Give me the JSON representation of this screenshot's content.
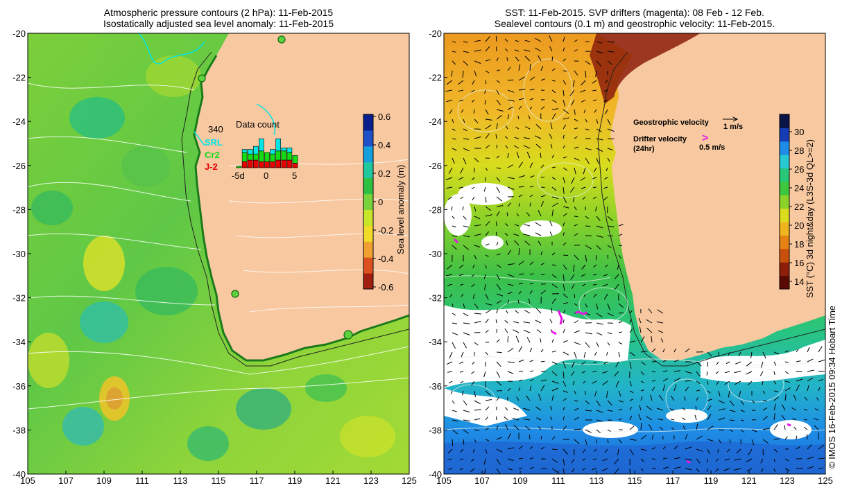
{
  "left_panel": {
    "title_line1": "Atmospheric pressure contours (2 hPa): 11-Feb-2015",
    "title_line2": "Isostatically adjusted sea level anomaly: 11-Feb-2015",
    "colorbar": {
      "label": "Sea level anomaly (m)",
      "ticks": [
        "0.6",
        "0.4",
        "0.2",
        "0",
        "-0.2",
        "-0.4",
        "-0.6"
      ],
      "colors": [
        "#0a1e8c",
        "#1e50c8",
        "#14a0dc",
        "#20c8a0",
        "#2ec040",
        "#78d23c",
        "#c8e628",
        "#f0dc28",
        "#f0a030",
        "#dc5020",
        "#a01e10"
      ]
    },
    "data_count": {
      "title": "Data count",
      "max_label": "340",
      "series": [
        "SRL",
        "Cr2",
        "J-2"
      ],
      "series_colors": [
        "#00e6e6",
        "#14dc14",
        "#e60000"
      ],
      "x_ticks": [
        "-5d",
        "0",
        "5"
      ],
      "bars": [
        {
          "day": -6,
          "SRL": 0,
          "Cr2": 1,
          "J-2": 0
        },
        {
          "day": -5,
          "SRL": 2,
          "Cr2": 6,
          "J-2": 4
        },
        {
          "day": -4,
          "SRL": 3,
          "Cr2": 4,
          "J-2": 5
        },
        {
          "day": -3,
          "SRL": 5,
          "Cr2": 4,
          "J-2": 5
        },
        {
          "day": -2,
          "SRL": 8,
          "Cr2": 7,
          "J-2": 4
        },
        {
          "day": -1,
          "SRL": 0,
          "Cr2": 6,
          "J-2": 4
        },
        {
          "day": 0,
          "SRL": 3,
          "Cr2": 5,
          "J-2": 4
        },
        {
          "day": 1,
          "SRL": 8,
          "Cr2": 6,
          "J-2": 5
        },
        {
          "day": 2,
          "SRL": 2,
          "Cr2": 6,
          "J-2": 5
        },
        {
          "day": 3,
          "SRL": 3,
          "Cr2": 5,
          "J-2": 5
        },
        {
          "day": 4,
          "SRL": 0,
          "Cr2": 5,
          "J-2": 3
        }
      ]
    }
  },
  "right_panel": {
    "title_line1": "SST: 11-Feb-2015. SVP drifters (magenta): 08 Feb - 12 Feb.",
    "title_line2": "Sealevel contours (0.1 m) and geostrophic velocity: 11-Feb-2015.",
    "legend": {
      "geostrophic_label": "Geostrophic velocity",
      "geostrophic_value": "1 m/s",
      "drifter_label": "Drifter velocity",
      "drifter_sub": "(24hr)",
      "drifter_value": "0.5 m/s"
    },
    "colorbar": {
      "label": "SST (°C) 3d night&day (L3S-3d QL>=2)",
      "ticks": [
        "30",
        "28",
        "26",
        "24",
        "22",
        "20",
        "18",
        "16",
        "14"
      ],
      "colors": [
        "#0a1446",
        "#143cb4",
        "#1e8ce6",
        "#28c8d2",
        "#28c878",
        "#3cc83c",
        "#8cd228",
        "#dcdc1e",
        "#f0b41e",
        "#e68214",
        "#c8500a",
        "#8c1e0a",
        "#5a0a05"
      ]
    }
  },
  "map_axes": {
    "x_ticks": [
      "105",
      "107",
      "109",
      "111",
      "113",
      "115",
      "117",
      "119",
      "121",
      "123",
      "125"
    ],
    "y_ticks": [
      "-20",
      "-22",
      "-24",
      "-26",
      "-28",
      "-30",
      "-32",
      "-34",
      "-36",
      "-38",
      "-40"
    ]
  },
  "credit": "© IMOS 16-Feb-2015 09:34 Hobart Time"
}
